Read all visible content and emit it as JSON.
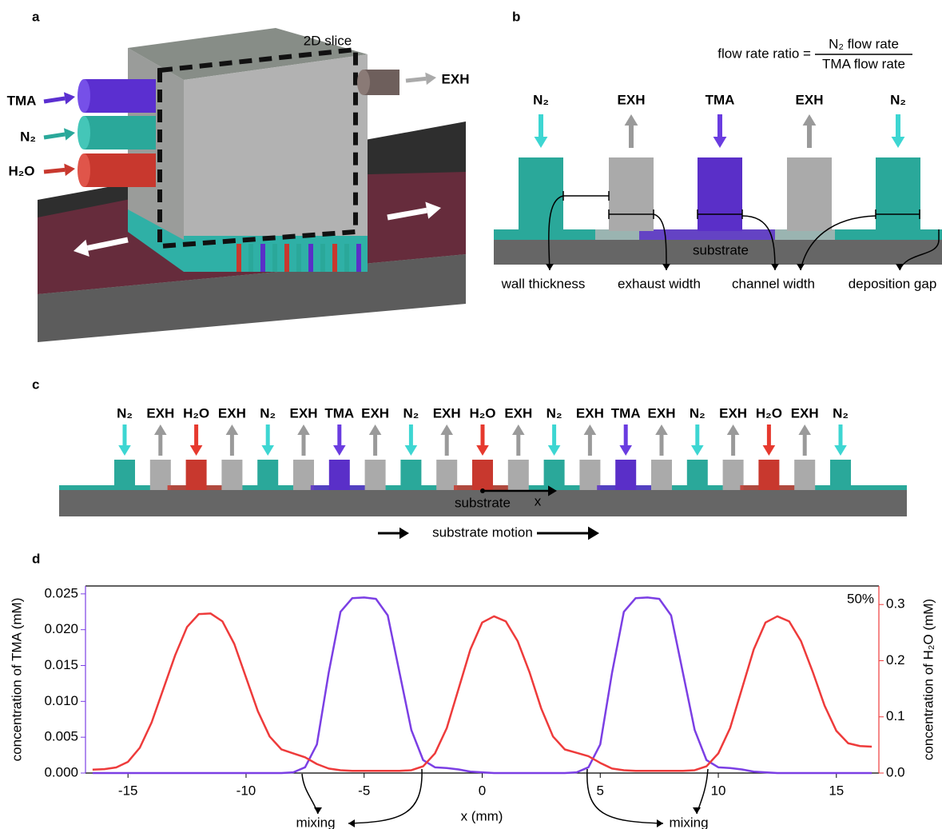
{
  "panel_a": {
    "label": "a",
    "inlets": [
      "TMA",
      "N₂",
      "H₂O"
    ],
    "outlet": "EXH",
    "slice": "2D slice"
  },
  "panel_b": {
    "label": "b",
    "ratio": {
      "lhs": "flow rate ratio =",
      "numerator": "N₂ flow rate",
      "denominator": "TMA flow rate"
    },
    "channels": [
      "N₂",
      "EXH",
      "TMA",
      "EXH",
      "N₂"
    ],
    "substrate": "substrate",
    "dimensions": [
      "wall thickness",
      "exhaust width",
      "channel width",
      "deposition gap"
    ]
  },
  "panel_c": {
    "label": "c",
    "channels": [
      "N₂",
      "EXH",
      "H₂O",
      "EXH",
      "N₂",
      "EXH",
      "TMA",
      "EXH",
      "N₂",
      "EXH",
      "H₂O",
      "EXH",
      "N₂",
      "EXH",
      "TMA",
      "EXH",
      "N₂",
      "EXH",
      "H₂O",
      "EXH",
      "N₂"
    ],
    "substrate": "substrate",
    "axis": "x",
    "motion": "substrate motion"
  },
  "panel_d": {
    "label": "d"
  },
  "chart_data": {
    "type": "line",
    "x_label": "x (mm)",
    "y_label": "concentration of TMA (mM)",
    "y2_label": "concentration of H₂O (mM)",
    "annotations": [
      "50%",
      "mixing",
      "mixing"
    ],
    "xlim": [
      -16.8,
      16.8
    ],
    "xticks": [
      -15,
      -10,
      -5,
      0,
      5,
      10,
      15
    ],
    "ylim": [
      0,
      0.0261
    ],
    "yticks": [
      {
        "value": 0,
        "label": "0.000"
      },
      0.005,
      {
        "value": 0.01,
        "label": "0.010"
      },
      0.015,
      {
        "value": 0.02,
        "label": "0.020"
      },
      0.025
    ],
    "y2lim": [
      0,
      0.333
    ],
    "y2ticks": [
      {
        "value": 0,
        "label": "0.0"
      },
      0.1,
      0.2,
      0.3
    ],
    "x": [
      -16.5,
      -16,
      -15.5,
      -15,
      -14.5,
      -14,
      -13.5,
      -13,
      -12.5,
      -12,
      -11.5,
      -11,
      -10.5,
      -10,
      -9.5,
      -9,
      -8.5,
      -8,
      -7.5,
      -7,
      -6.5,
      -6,
      -5.5,
      -5,
      -4.5,
      -4,
      -3.5,
      -3,
      -2.5,
      -2,
      -1.5,
      -1,
      -0.5,
      0,
      0.5,
      1,
      1.5,
      2,
      2.5,
      3,
      3.5,
      4,
      4.5,
      5,
      5.5,
      6,
      6.5,
      7,
      7.5,
      8,
      8.5,
      9,
      9.5,
      10,
      10.5,
      11,
      11.5,
      12,
      12.5,
      13,
      13.5,
      14,
      14.5,
      15,
      15.5,
      16,
      16.5
    ],
    "series": [
      {
        "color": "#7b3fe4",
        "values": [
          0,
          0,
          0,
          0,
          0,
          0,
          0,
          0,
          0,
          0,
          0,
          0,
          0,
          0,
          0,
          0,
          0,
          0.0001,
          0.0008,
          0.004,
          0.014,
          0.0225,
          0.0244,
          0.0245,
          0.0243,
          0.022,
          0.014,
          0.006,
          0.0018,
          0.0008,
          0.0007,
          0.0005,
          0.0002,
          0.0001,
          0,
          0,
          0,
          0,
          0,
          0,
          0,
          0.0001,
          0.0008,
          0.004,
          0.014,
          0.0225,
          0.0244,
          0.0245,
          0.0243,
          0.022,
          0.014,
          0.006,
          0.0018,
          0.0008,
          0.0007,
          0.0005,
          0.0002,
          0.0001,
          0,
          0,
          0,
          0,
          0,
          0,
          0,
          0,
          0
        ]
      },
      {
        "color": "#ee3b3b",
        "axis": "y2",
        "values": [
          0.006,
          0.007,
          0.01,
          0.02,
          0.045,
          0.09,
          0.15,
          0.21,
          0.26,
          0.283,
          0.284,
          0.27,
          0.23,
          0.17,
          0.11,
          0.065,
          0.042,
          0.035,
          0.028,
          0.016,
          0.008,
          0.005,
          0.004,
          0.004,
          0.004,
          0.004,
          0.004,
          0.005,
          0.012,
          0.035,
          0.08,
          0.15,
          0.22,
          0.268,
          0.279,
          0.27,
          0.235,
          0.18,
          0.115,
          0.065,
          0.042,
          0.036,
          0.03,
          0.018,
          0.008,
          0.005,
          0.004,
          0.004,
          0.004,
          0.004,
          0.004,
          0.005,
          0.012,
          0.035,
          0.08,
          0.15,
          0.22,
          0.268,
          0.279,
          0.27,
          0.235,
          0.18,
          0.12,
          0.075,
          0.053,
          0.048,
          0.047
        ]
      }
    ]
  }
}
